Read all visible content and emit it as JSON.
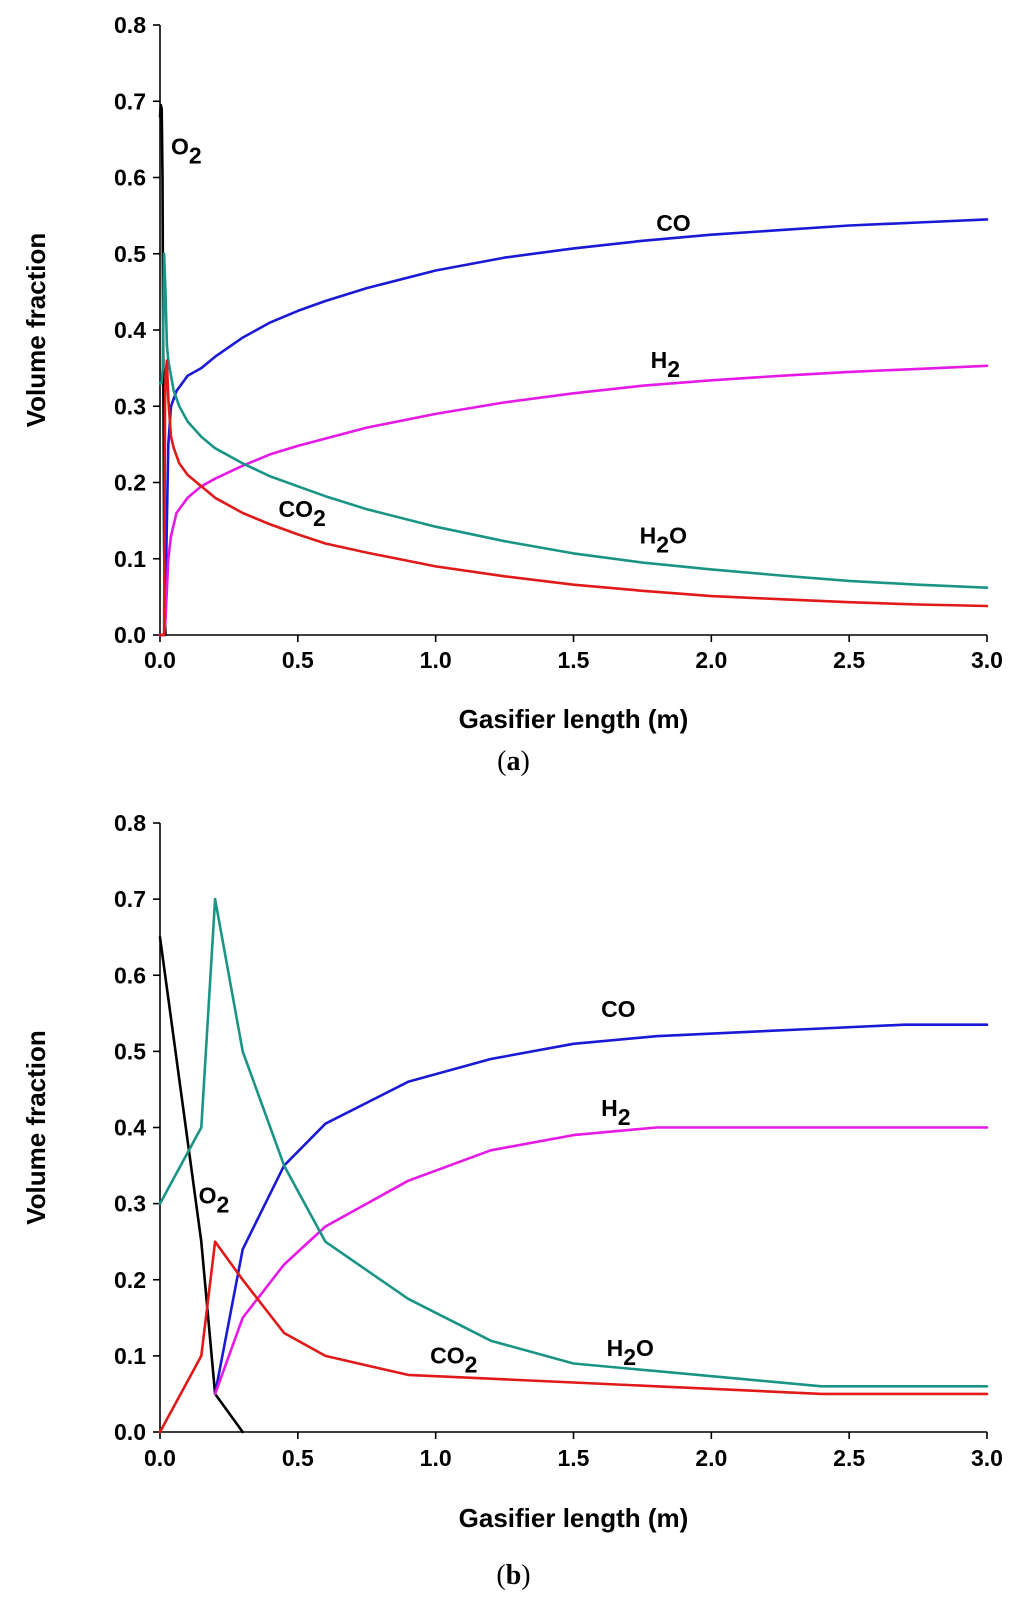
{
  "chart_data": [
    {
      "type": "line",
      "panel_label": "a",
      "xlabel": "Gasifier length (m)",
      "ylabel": "Volume fraction",
      "xlim": [
        0,
        3.0
      ],
      "ylim": [
        0,
        0.8
      ],
      "xticks": [
        "0.0",
        "0.5",
        "1.0",
        "1.5",
        "2.0",
        "2.5",
        "3.0"
      ],
      "yticks": [
        "0.0",
        "0.1",
        "0.2",
        "0.3",
        "0.4",
        "0.5",
        "0.6",
        "0.7",
        "0.8"
      ],
      "series": [
        {
          "name": "O2",
          "base": "O",
          "sub": "2",
          "suffix": "",
          "color": "#000000",
          "label_at": [
            0.04,
            0.63
          ],
          "x": [
            0,
            0.003,
            0.006,
            0.009,
            0.012,
            0.015,
            0.018,
            0.02
          ],
          "y": [
            0.68,
            0.695,
            0.69,
            0.6,
            0.35,
            0.12,
            0.02,
            0.0
          ]
        },
        {
          "name": "CO",
          "base": "CO",
          "sub": "",
          "suffix": "",
          "color": "#1a1ad6",
          "label_at": [
            1.8,
            0.53
          ],
          "x": [
            0,
            0.015,
            0.02,
            0.025,
            0.03,
            0.04,
            0.06,
            0.1,
            0.15,
            0.2,
            0.3,
            0.4,
            0.5,
            0.6,
            0.75,
            1.0,
            1.25,
            1.5,
            1.75,
            2.0,
            2.25,
            2.5,
            2.75,
            3.0
          ],
          "y": [
            0,
            0,
            0.05,
            0.15,
            0.25,
            0.3,
            0.32,
            0.34,
            0.35,
            0.365,
            0.39,
            0.41,
            0.425,
            0.438,
            0.455,
            0.478,
            0.495,
            0.507,
            0.517,
            0.525,
            0.531,
            0.537,
            0.541,
            0.545
          ]
        },
        {
          "name": "H2",
          "base": "H",
          "sub": "2",
          "suffix": "",
          "color": "#e619e6",
          "label_at": [
            1.78,
            0.35
          ],
          "x": [
            0,
            0.015,
            0.02,
            0.025,
            0.03,
            0.04,
            0.06,
            0.1,
            0.15,
            0.2,
            0.3,
            0.4,
            0.5,
            0.75,
            1.0,
            1.25,
            1.5,
            1.75,
            2.0,
            2.25,
            2.5,
            2.75,
            3.0
          ],
          "y": [
            0,
            0,
            0.02,
            0.06,
            0.1,
            0.13,
            0.16,
            0.18,
            0.195,
            0.205,
            0.222,
            0.237,
            0.248,
            0.272,
            0.29,
            0.305,
            0.317,
            0.327,
            0.334,
            0.34,
            0.345,
            0.349,
            0.353
          ]
        },
        {
          "name": "H2O",
          "base": "H",
          "sub": "2",
          "suffix": "O",
          "color": "#1a9485",
          "label_at": [
            1.74,
            0.12
          ],
          "x": [
            0,
            0.005,
            0.01,
            0.015,
            0.02,
            0.025,
            0.03,
            0.04,
            0.05,
            0.07,
            0.1,
            0.15,
            0.2,
            0.3,
            0.4,
            0.5,
            0.6,
            0.75,
            1.0,
            1.25,
            1.5,
            1.75,
            2.0,
            2.25,
            2.5,
            2.75,
            3.0
          ],
          "y": [
            0.33,
            0.33,
            0.35,
            0.5,
            0.45,
            0.38,
            0.36,
            0.34,
            0.32,
            0.3,
            0.28,
            0.26,
            0.245,
            0.225,
            0.208,
            0.195,
            0.182,
            0.165,
            0.142,
            0.123,
            0.107,
            0.095,
            0.086,
            0.078,
            0.071,
            0.066,
            0.062
          ]
        },
        {
          "name": "CO2",
          "base": "CO",
          "sub": "2",
          "suffix": "",
          "color": "#e01919",
          "label_at": [
            0.43,
            0.155
          ],
          "x": [
            0,
            0.015,
            0.018,
            0.02,
            0.025,
            0.03,
            0.04,
            0.05,
            0.07,
            0.1,
            0.15,
            0.2,
            0.3,
            0.4,
            0.5,
            0.6,
            0.75,
            1.0,
            1.25,
            1.5,
            1.75,
            2.0,
            2.25,
            2.5,
            2.75,
            3.0
          ],
          "y": [
            0,
            0,
            0.3,
            0.34,
            0.36,
            0.31,
            0.26,
            0.245,
            0.225,
            0.21,
            0.195,
            0.18,
            0.16,
            0.145,
            0.132,
            0.12,
            0.108,
            0.09,
            0.077,
            0.066,
            0.058,
            0.051,
            0.047,
            0.043,
            0.04,
            0.038
          ]
        }
      ]
    },
    {
      "type": "line",
      "panel_label": "b",
      "xlabel": "Gasifier length (m)",
      "ylabel": "Volume fraction",
      "xlim": [
        0,
        3.0
      ],
      "ylim": [
        0,
        0.8
      ],
      "xticks": [
        "0.0",
        "0.5",
        "1.0",
        "1.5",
        "2.0",
        "2.5",
        "3.0"
      ],
      "yticks": [
        "0.0",
        "0.1",
        "0.2",
        "0.3",
        "0.4",
        "0.5",
        "0.6",
        "0.7",
        "0.8"
      ],
      "series": [
        {
          "name": "O2",
          "base": "O",
          "sub": "2",
          "suffix": "",
          "color": "#000000",
          "label_at": [
            0.14,
            0.3
          ],
          "x": [
            0,
            0.15,
            0.2,
            0.3
          ],
          "y": [
            0.65,
            0.25,
            0.05,
            0.0
          ]
        },
        {
          "name": "CO",
          "base": "CO",
          "sub": "",
          "suffix": "",
          "color": "#1a1ad6",
          "label_at": [
            1.6,
            0.545
          ],
          "x": [
            0.2,
            0.3,
            0.45,
            0.6,
            0.9,
            1.2,
            1.5,
            1.8,
            2.1,
            2.4,
            2.7,
            3.0
          ],
          "y": [
            0.05,
            0.24,
            0.35,
            0.405,
            0.46,
            0.49,
            0.51,
            0.52,
            0.525,
            0.53,
            0.535,
            0.535
          ]
        },
        {
          "name": "H2",
          "base": "H",
          "sub": "2",
          "suffix": "",
          "color": "#e619e6",
          "label_at": [
            1.6,
            0.415
          ],
          "x": [
            0.2,
            0.3,
            0.45,
            0.6,
            0.9,
            1.2,
            1.5,
            1.8,
            2.1,
            2.4,
            2.7,
            3.0
          ],
          "y": [
            0.05,
            0.15,
            0.22,
            0.27,
            0.33,
            0.37,
            0.39,
            0.4,
            0.4,
            0.4,
            0.4,
            0.4
          ]
        },
        {
          "name": "H2O",
          "base": "H",
          "sub": "2",
          "suffix": "O",
          "color": "#1a9485",
          "label_at": [
            1.62,
            0.1
          ],
          "x": [
            0,
            0.15,
            0.2,
            0.3,
            0.45,
            0.6,
            0.9,
            1.2,
            1.5,
            1.8,
            2.1,
            2.4,
            2.7,
            3.0
          ],
          "y": [
            0.3,
            0.4,
            0.7,
            0.5,
            0.35,
            0.25,
            0.175,
            0.12,
            0.09,
            0.08,
            0.07,
            0.06,
            0.06,
            0.06
          ]
        },
        {
          "name": "CO2",
          "base": "CO",
          "sub": "2",
          "suffix": "",
          "color": "#e01919",
          "label_at": [
            0.98,
            0.09
          ],
          "x": [
            0,
            0.15,
            0.2,
            0.3,
            0.45,
            0.6,
            0.9,
            1.2,
            1.5,
            1.8,
            2.1,
            2.4,
            2.7,
            3.0
          ],
          "y": [
            0.0,
            0.1,
            0.25,
            0.2,
            0.13,
            0.1,
            0.075,
            0.07,
            0.065,
            0.06,
            0.055,
            0.05,
            0.05,
            0.05
          ]
        }
      ]
    }
  ]
}
